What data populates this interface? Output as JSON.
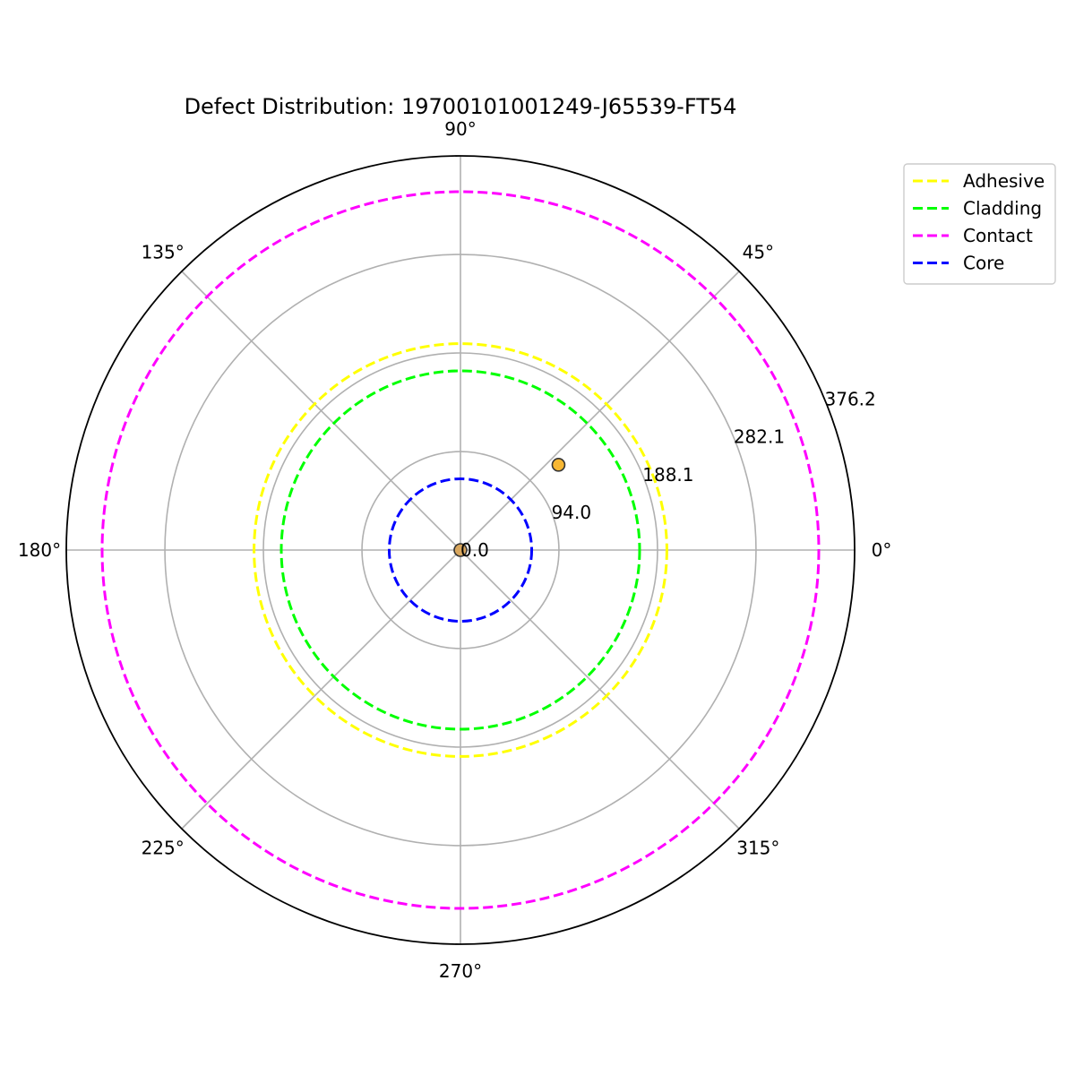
{
  "chart_data": {
    "type": "scatter",
    "projection": "polar",
    "title": "Defect Distribution: 19700101001249-J65539-FT54",
    "theta_unit": "degrees",
    "theta_ticks": [
      0,
      45,
      90,
      135,
      180,
      225,
      270,
      315
    ],
    "theta_tick_labels": [
      "0°",
      "45°",
      "90°",
      "135°",
      "180°",
      "225°",
      "270°",
      "315°"
    ],
    "r_ticks": [
      0.0,
      94.0,
      188.1,
      282.1,
      376.2
    ],
    "r_tick_labels": [
      "0.0",
      "94.0",
      "188.1",
      "282.1",
      "376.2"
    ],
    "r_label_angle_deg": 22.5,
    "rlim": [
      0,
      376.2
    ],
    "grid": true,
    "legend_position": "upper right, outside plot",
    "zones": [
      {
        "name": "Adhesive",
        "radius": 197,
        "color": "#ffff00",
        "linestyle": "dashed"
      },
      {
        "name": "Cladding",
        "radius": 171,
        "color": "#00ff00",
        "linestyle": "dashed"
      },
      {
        "name": "Contact",
        "radius": 342,
        "color": "#ff00ff",
        "linestyle": "dashed"
      },
      {
        "name": "Core",
        "radius": 68,
        "color": "#0000ff",
        "linestyle": "dashed"
      }
    ],
    "points": [
      {
        "theta": 41,
        "r": 124,
        "color": "#f7b733"
      },
      {
        "theta": 0,
        "r": 0,
        "color": "#d9a75e"
      }
    ]
  }
}
